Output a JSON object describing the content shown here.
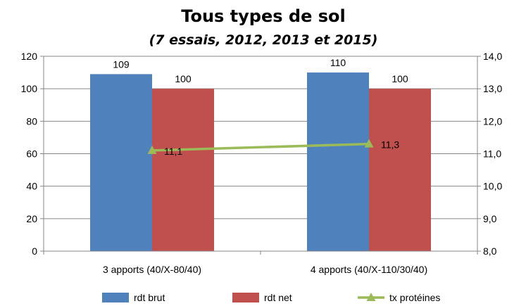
{
  "chart_data": {
    "type": "bar",
    "title": "Tous types de sol",
    "subtitle": "(7 essais, 2012, 2013 et 2015)",
    "categories": [
      "3 apports (40/X-80/40)",
      "4 apports (40/X-110/30/40)"
    ],
    "series": [
      {
        "name": "rdt brut",
        "type": "bar",
        "axis": "left",
        "color": "#4F81BD",
        "values": [
          109,
          110
        ],
        "labels": [
          "109",
          "110"
        ]
      },
      {
        "name": "rdt net",
        "type": "bar",
        "axis": "left",
        "color": "#C0504D",
        "values": [
          100,
          100
        ],
        "labels": [
          "100",
          "100"
        ]
      },
      {
        "name": "tx protéines",
        "type": "line",
        "axis": "right",
        "color": "#9BBB59",
        "values": [
          11.1,
          11.3
        ],
        "labels": [
          "11,1",
          "11,3"
        ]
      }
    ],
    "ylim": [
      0,
      120
    ],
    "yticks": [
      "0",
      "20",
      "40",
      "60",
      "80",
      "100",
      "120"
    ],
    "y2lim": [
      8.0,
      14.0
    ],
    "y2ticks": [
      "8,0",
      "9,0",
      "10,0",
      "11,0",
      "12,0",
      "13,0",
      "14,0"
    ],
    "grid": true,
    "legend_position": "bottom"
  }
}
